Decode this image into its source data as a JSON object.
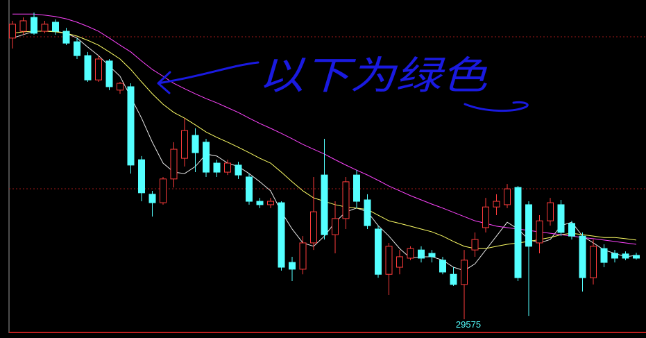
{
  "chart_data": {
    "type": "candlestick",
    "annotation": "以下为绿色",
    "up_color": "#ff3c3c",
    "down_color": "#54ffff",
    "ylim": [
      29526,
      30679
    ],
    "open": [
      30569,
      30593,
      30642,
      30593,
      30625,
      30593,
      30556,
      30507,
      30421,
      30488,
      30385,
      30397,
      30139,
      30017,
      29987,
      30071,
      30144,
      30225,
      30201,
      30127,
      30095,
      30120,
      30078,
      29992,
      29980,
      29987,
      29776,
      29752,
      29845,
      30085,
      29874,
      29931,
      30085,
      29997,
      29894,
      29734,
      29759,
      29791,
      29820,
      29808,
      29784,
      29734,
      29698,
      29820,
      29899,
      29972,
      29980,
      30041,
      29980,
      29845,
      29923,
      29980,
      29914,
      29869,
      29722,
      29825,
      29808,
      29806,
      29801
    ],
    "high": [
      30630,
      30642,
      30659,
      30630,
      30635,
      30605,
      30569,
      30520,
      30507,
      30495,
      30414,
      30409,
      30152,
      30029,
      30078,
      30201,
      30286,
      30250,
      30213,
      30139,
      30139,
      30132,
      30090,
      30004,
      30004,
      29992,
      29796,
      29869,
      30078,
      30213,
      29992,
      30078,
      30102,
      30017,
      29906,
      29845,
      29820,
      29833,
      29833,
      29820,
      29796,
      29759,
      29820,
      29882,
      30004,
      30017,
      30053,
      30046,
      29992,
      29943,
      30004,
      29997,
      29923,
      29882,
      29857,
      29840,
      29820,
      29815,
      29810
    ],
    "low": [
      30532,
      30581,
      30581,
      30586,
      30581,
      30544,
      30495,
      30414,
      30414,
      30385,
      30372,
      30090,
      29992,
      29938,
      29980,
      30041,
      30115,
      30095,
      30078,
      30078,
      30085,
      30071,
      29980,
      29968,
      29968,
      29747,
      29710,
      29734,
      29820,
      29857,
      29808,
      29894,
      29968,
      29894,
      29722,
      29661,
      29734,
      29784,
      29776,
      29776,
      29734,
      29693,
      29575,
      29796,
      29882,
      29943,
      29968,
      29710,
      29587,
      29808,
      29906,
      29869,
      29857,
      29673,
      29698,
      29759,
      29776,
      29784,
      29786
    ],
    "close": [
      30618,
      30630,
      30586,
      30618,
      30593,
      30551,
      30507,
      30421,
      30495,
      30397,
      30409,
      30120,
      30022,
      29987,
      30071,
      30176,
      30242,
      30164,
      30095,
      30095,
      30127,
      30085,
      29992,
      29980,
      29992,
      29759,
      29752,
      29845,
      29955,
      29874,
      29931,
      30061,
      29992,
      29906,
      29734,
      29833,
      29796,
      29825,
      29791,
      29796,
      29742,
      29698,
      29784,
      29857,
      29972,
      29992,
      30036,
      29722,
      29833,
      29923,
      29987,
      29882,
      29869,
      29722,
      29833,
      29776,
      29791,
      29791,
      29791
    ],
    "lines": [
      {
        "color": "#e8e8e8",
        "values": [
          30569,
          30581,
          30593,
          30593,
          30593,
          30586,
          30569,
          30537,
          30507,
          30470,
          30434,
          30360,
          30286,
          30201,
          30127,
          30095,
          30090,
          30115,
          30159,
          30152,
          30127,
          30115,
          30090,
          30061,
          30029,
          29955,
          29894,
          29845,
          29833,
          29869,
          29918,
          29955,
          29968,
          29955,
          29906,
          29869,
          29825,
          29791,
          29796,
          29796,
          29784,
          29759,
          29747,
          29771,
          29820,
          29869,
          29918,
          29894,
          29857,
          29845,
          29857,
          29906,
          29918,
          29869,
          29845,
          29820,
          29808,
          29796,
          29801
        ]
      },
      {
        "color": "#ffff66",
        "values": [
          30586,
          30591,
          30593,
          30593,
          30591,
          30586,
          30576,
          30561,
          30544,
          30520,
          30495,
          30458,
          30414,
          30372,
          30335,
          30306,
          30286,
          30262,
          30237,
          30218,
          30201,
          30183,
          30164,
          30144,
          30127,
          30095,
          30061,
          30029,
          30004,
          29992,
          29980,
          29972,
          29968,
          29963,
          29943,
          29923,
          29914,
          29904,
          29894,
          29884,
          29869,
          29850,
          29833,
          29825,
          29825,
          29833,
          29840,
          29845,
          29850,
          29857,
          29864,
          29874,
          29879,
          29874,
          29869,
          29864,
          29864,
          29860,
          29855
        ]
      },
      {
        "color": "#ff44ff",
        "values": [
          30654,
          30654,
          30654,
          30650,
          30645,
          30637,
          30625,
          30610,
          30593,
          30569,
          30544,
          30520,
          30488,
          30458,
          30434,
          30409,
          30390,
          30372,
          30355,
          30340,
          30323,
          30306,
          30286,
          30267,
          30250,
          30232,
          30213,
          30193,
          30176,
          30159,
          30139,
          30120,
          30102,
          30085,
          30066,
          30046,
          30029,
          30012,
          29997,
          29982,
          29968,
          29953,
          29938,
          29923,
          29914,
          29904,
          29899,
          29894,
          29889,
          29884,
          29879,
          29874,
          29869,
          29864,
          29860,
          29855,
          29850,
          29845,
          29840
        ]
      }
    ]
  }
}
